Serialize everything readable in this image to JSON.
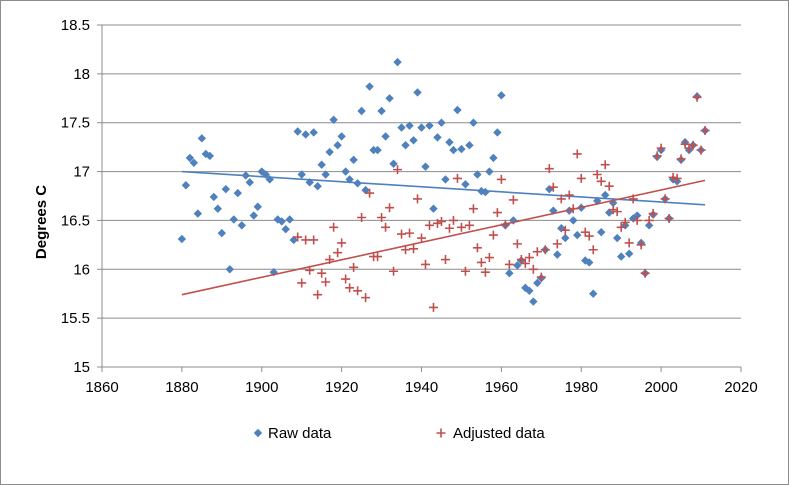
{
  "chart_data": {
    "type": "scatter",
    "title": "",
    "xlabel": "",
    "ylabel": "Degrees C",
    "xlim": [
      1860,
      2020
    ],
    "ylim": [
      15,
      18.5
    ],
    "x_ticks": [
      "1860",
      "1880",
      "1900",
      "1920",
      "1940",
      "1960",
      "1980",
      "2000",
      "2020"
    ],
    "y_ticks": [
      "15",
      "15.5",
      "16",
      "16.5",
      "17",
      "17.5",
      "18",
      "18.5"
    ],
    "legend_position": "bottom",
    "series": [
      {
        "name": "Raw data",
        "marker": "diamond",
        "color": "#4f81bd",
        "points": [
          [
            1880,
            16.31
          ],
          [
            1881,
            16.86
          ],
          [
            1882,
            17.14
          ],
          [
            1883,
            17.09
          ],
          [
            1884,
            16.57
          ],
          [
            1885,
            17.34
          ],
          [
            1886,
            17.18
          ],
          [
            1887,
            17.16
          ],
          [
            1888,
            16.74
          ],
          [
            1889,
            16.62
          ],
          [
            1890,
            16.37
          ],
          [
            1891,
            16.82
          ],
          [
            1892,
            16.0
          ],
          [
            1893,
            16.51
          ],
          [
            1894,
            16.78
          ],
          [
            1895,
            16.45
          ],
          [
            1896,
            16.96
          ],
          [
            1897,
            16.89
          ],
          [
            1898,
            16.55
          ],
          [
            1899,
            16.64
          ],
          [
            1900,
            17.0
          ],
          [
            1901,
            16.97
          ],
          [
            1902,
            16.92
          ],
          [
            1903,
            15.97
          ],
          [
            1904,
            16.51
          ],
          [
            1905,
            16.49
          ],
          [
            1906,
            16.41
          ],
          [
            1907,
            16.51
          ],
          [
            1908,
            16.3
          ],
          [
            1909,
            17.41
          ],
          [
            1910,
            16.97
          ],
          [
            1911,
            17.38
          ],
          [
            1912,
            16.89
          ],
          [
            1913,
            17.4
          ],
          [
            1914,
            16.85
          ],
          [
            1915,
            17.07
          ],
          [
            1916,
            16.97
          ],
          [
            1917,
            17.2
          ],
          [
            1918,
            17.53
          ],
          [
            1919,
            17.27
          ],
          [
            1920,
            17.36
          ],
          [
            1921,
            17.0
          ],
          [
            1922,
            16.92
          ],
          [
            1923,
            17.12
          ],
          [
            1924,
            16.88
          ],
          [
            1925,
            17.62
          ],
          [
            1926,
            16.81
          ],
          [
            1927,
            17.87
          ],
          [
            1928,
            17.22
          ],
          [
            1929,
            17.22
          ],
          [
            1930,
            17.62
          ],
          [
            1931,
            17.36
          ],
          [
            1932,
            17.75
          ],
          [
            1933,
            17.08
          ],
          [
            1934,
            18.12
          ],
          [
            1935,
            17.45
          ],
          [
            1936,
            17.27
          ],
          [
            1937,
            17.47
          ],
          [
            1938,
            17.32
          ],
          [
            1939,
            17.81
          ],
          [
            1940,
            17.45
          ],
          [
            1941,
            17.05
          ],
          [
            1942,
            17.47
          ],
          [
            1943,
            16.62
          ],
          [
            1944,
            17.35
          ],
          [
            1945,
            17.5
          ],
          [
            1946,
            16.92
          ],
          [
            1947,
            17.3
          ],
          [
            1948,
            17.22
          ],
          [
            1949,
            17.63
          ],
          [
            1950,
            17.23
          ],
          [
            1951,
            16.87
          ],
          [
            1952,
            17.27
          ],
          [
            1953,
            17.5
          ],
          [
            1954,
            16.97
          ],
          [
            1955,
            16.8
          ],
          [
            1956,
            16.79
          ],
          [
            1957,
            17.0
          ],
          [
            1958,
            17.14
          ],
          [
            1959,
            17.4
          ],
          [
            1960,
            17.78
          ],
          [
            1961,
            16.45
          ],
          [
            1962,
            15.96
          ],
          [
            1963,
            16.5
          ],
          [
            1964,
            16.04
          ],
          [
            1965,
            16.09
          ],
          [
            1966,
            15.81
          ],
          [
            1967,
            15.78
          ],
          [
            1968,
            15.67
          ],
          [
            1969,
            15.86
          ],
          [
            1970,
            15.91
          ],
          [
            1971,
            16.2
          ],
          [
            1972,
            16.82
          ],
          [
            1973,
            16.6
          ],
          [
            1974,
            16.15
          ],
          [
            1975,
            16.42
          ],
          [
            1976,
            16.32
          ],
          [
            1977,
            16.6
          ],
          [
            1978,
            16.5
          ],
          [
            1979,
            16.35
          ],
          [
            1980,
            16.63
          ],
          [
            1981,
            16.09
          ],
          [
            1982,
            16.07
          ],
          [
            1983,
            15.75
          ],
          [
            1984,
            16.7
          ],
          [
            1985,
            16.38
          ],
          [
            1986,
            16.76
          ],
          [
            1987,
            16.58
          ],
          [
            1988,
            16.68
          ],
          [
            1989,
            16.32
          ],
          [
            1990,
            16.13
          ],
          [
            1991,
            16.45
          ],
          [
            1992,
            16.16
          ],
          [
            1993,
            16.52
          ],
          [
            1994,
            16.55
          ],
          [
            1995,
            16.27
          ],
          [
            1996,
            15.96
          ],
          [
            1997,
            16.45
          ],
          [
            1998,
            16.56
          ],
          [
            1999,
            17.15
          ],
          [
            2000,
            17.22
          ],
          [
            2001,
            16.72
          ],
          [
            2002,
            16.52
          ],
          [
            2003,
            16.92
          ],
          [
            2004,
            16.9
          ],
          [
            2005,
            17.12
          ],
          [
            2006,
            17.3
          ],
          [
            2007,
            17.22
          ],
          [
            2008,
            17.27
          ],
          [
            2009,
            17.77
          ],
          [
            2010,
            17.22
          ],
          [
            2011,
            17.42
          ]
        ],
        "trend": {
          "x": [
            1880,
            2011
          ],
          "y": [
            17.0,
            16.66
          ]
        }
      },
      {
        "name": "Adjusted data",
        "marker": "plus",
        "color": "#c0504d",
        "points": [
          [
            1909,
            16.33
          ],
          [
            1910,
            15.86
          ],
          [
            1911,
            16.3
          ],
          [
            1912,
            15.99
          ],
          [
            1913,
            16.3
          ],
          [
            1914,
            15.74
          ],
          [
            1915,
            15.96
          ],
          [
            1916,
            15.87
          ],
          [
            1917,
            16.1
          ],
          [
            1918,
            16.43
          ],
          [
            1919,
            16.17
          ],
          [
            1920,
            16.27
          ],
          [
            1921,
            15.9
          ],
          [
            1922,
            15.81
          ],
          [
            1923,
            16.02
          ],
          [
            1924,
            15.78
          ],
          [
            1925,
            16.53
          ],
          [
            1926,
            15.71
          ],
          [
            1927,
            16.78
          ],
          [
            1928,
            16.13
          ],
          [
            1929,
            16.13
          ],
          [
            1930,
            16.53
          ],
          [
            1931,
            16.43
          ],
          [
            1932,
            16.63
          ],
          [
            1933,
            15.98
          ],
          [
            1934,
            17.02
          ],
          [
            1935,
            16.36
          ],
          [
            1936,
            16.2
          ],
          [
            1937,
            16.37
          ],
          [
            1938,
            16.21
          ],
          [
            1939,
            16.72
          ],
          [
            1940,
            16.32
          ],
          [
            1941,
            16.05
          ],
          [
            1942,
            16.45
          ],
          [
            1943,
            15.61
          ],
          [
            1944,
            16.47
          ],
          [
            1945,
            16.49
          ],
          [
            1946,
            16.1
          ],
          [
            1947,
            16.42
          ],
          [
            1948,
            16.5
          ],
          [
            1949,
            16.93
          ],
          [
            1950,
            16.43
          ],
          [
            1951,
            15.98
          ],
          [
            1952,
            16.45
          ],
          [
            1953,
            16.62
          ],
          [
            1954,
            16.22
          ],
          [
            1955,
            16.07
          ],
          [
            1956,
            15.97
          ],
          [
            1957,
            16.12
          ],
          [
            1958,
            16.35
          ],
          [
            1959,
            16.58
          ],
          [
            1960,
            16.92
          ],
          [
            1961,
            16.46
          ],
          [
            1962,
            16.05
          ],
          [
            1963,
            16.71
          ],
          [
            1964,
            16.26
          ],
          [
            1965,
            16.1
          ],
          [
            1966,
            16.06
          ],
          [
            1967,
            16.12
          ],
          [
            1968,
            16.0
          ],
          [
            1969,
            16.18
          ],
          [
            1970,
            15.92
          ],
          [
            1971,
            16.2
          ],
          [
            1972,
            17.03
          ],
          [
            1973,
            16.84
          ],
          [
            1974,
            16.26
          ],
          [
            1975,
            16.72
          ],
          [
            1976,
            16.4
          ],
          [
            1977,
            16.76
          ],
          [
            1978,
            16.62
          ],
          [
            1979,
            17.18
          ],
          [
            1980,
            16.93
          ],
          [
            1981,
            16.38
          ],
          [
            1982,
            16.34
          ],
          [
            1983,
            16.2
          ],
          [
            1984,
            16.97
          ],
          [
            1985,
            16.9
          ],
          [
            1986,
            17.07
          ],
          [
            1987,
            16.85
          ],
          [
            1988,
            16.61
          ],
          [
            1989,
            16.59
          ],
          [
            1990,
            16.43
          ],
          [
            1991,
            16.48
          ],
          [
            1992,
            16.27
          ],
          [
            1993,
            16.72
          ],
          [
            1994,
            16.5
          ],
          [
            1995,
            16.25
          ],
          [
            1996,
            15.96
          ],
          [
            1997,
            16.5
          ],
          [
            1998,
            16.57
          ],
          [
            1999,
            17.16
          ],
          [
            2000,
            17.24
          ],
          [
            2001,
            16.72
          ],
          [
            2002,
            16.52
          ],
          [
            2003,
            16.94
          ],
          [
            2004,
            16.93
          ],
          [
            2005,
            17.13
          ],
          [
            2006,
            17.28
          ],
          [
            2007,
            17.24
          ],
          [
            2008,
            17.27
          ],
          [
            2009,
            17.76
          ],
          [
            2010,
            17.22
          ],
          [
            2011,
            17.42
          ]
        ],
        "trend": {
          "x": [
            1880,
            2011
          ],
          "y": [
            15.74,
            16.91
          ]
        }
      }
    ]
  }
}
